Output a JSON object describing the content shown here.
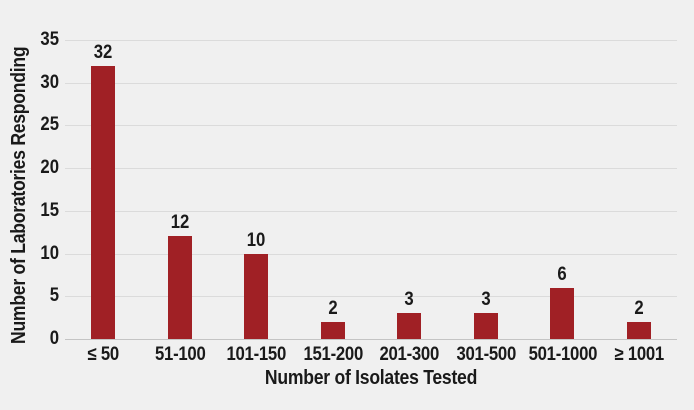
{
  "chart_data": {
    "type": "bar",
    "title": "",
    "categories": [
      "≤ 50",
      "51-100",
      "101-150",
      "151-200",
      "201-300",
      "301-500",
      "501-1000",
      "≥ 1001"
    ],
    "values": [
      32,
      12,
      10,
      2,
      3,
      3,
      6,
      2
    ],
    "value_labels": [
      "32",
      "12",
      "10",
      "2",
      "3",
      "3",
      "6",
      "2"
    ],
    "xlabel": "Number of Isolates Tested",
    "ylabel": "Number of Laboratories Responding",
    "ylim": [
      0,
      35
    ],
    "yticks": [
      0,
      5,
      10,
      15,
      20,
      25,
      30,
      35
    ],
    "grid": true,
    "legend_position": "none",
    "colors": {
      "bar": "#A02025",
      "background": "#F0F0F0",
      "gridline": "#DBDBDB",
      "axis_line": "#C4C4C4",
      "text": "#1A1A1A"
    }
  }
}
